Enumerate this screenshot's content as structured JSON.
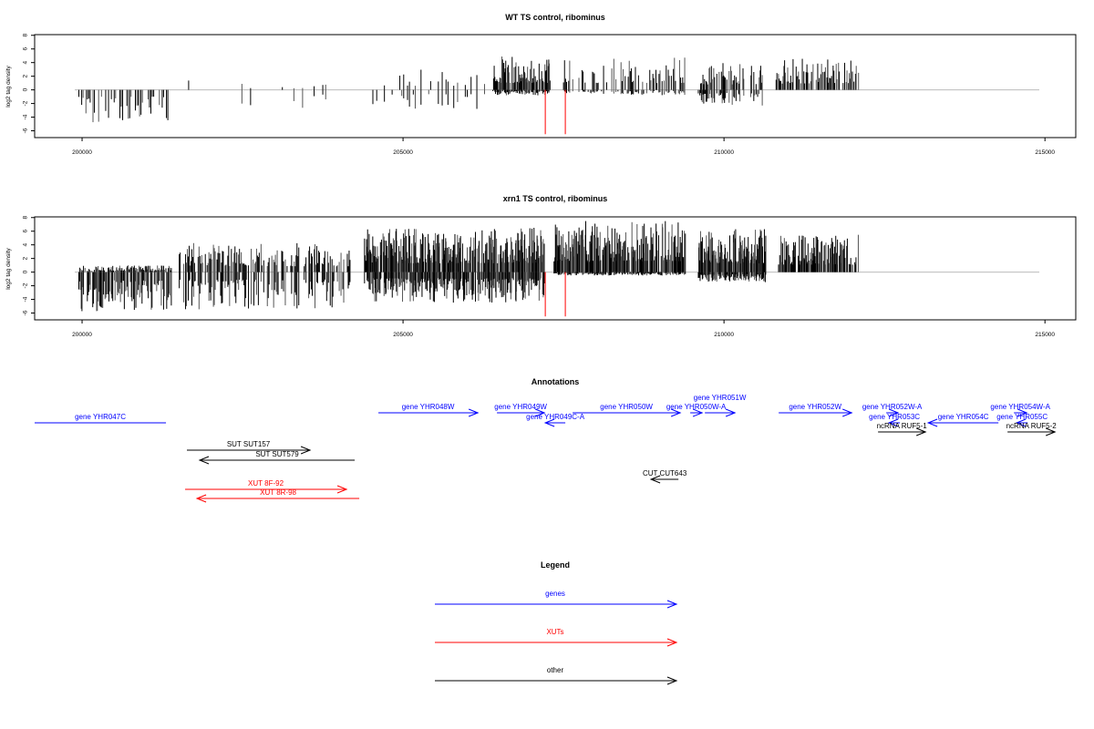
{
  "colors": {
    "genes": "#0000ff",
    "XUTs": "#ff0000",
    "other": "#000000",
    "bar": "#000000",
    "bar_alt": "#555555",
    "highlight": "#ff0000",
    "baseline": "#bbbbbb"
  },
  "chart_data": [
    {
      "type": "bar",
      "title": "WT TS control, ribominus",
      "ylabel": "log2 tag density",
      "xlim": [
        199261,
        215480
      ],
      "ylim": [
        -7,
        8.1
      ],
      "xticks": [
        200000,
        205000,
        210000,
        215000
      ],
      "xtick_labels": [
        "200000",
        "205000",
        "210000",
        "215000"
      ],
      "yticks": [
        8,
        6,
        4,
        2,
        0,
        -2,
        -4,
        -6
      ],
      "ytick_labels": [
        "8",
        "6",
        "4",
        "2",
        "0",
        "-2",
        "-4",
        "-6"
      ],
      "seed": 11,
      "regions": [
        {
          "start": 199950,
          "end": 201350,
          "step": 22,
          "pos_max": 0,
          "neg_max": 5,
          "fill": 0.8
        },
        {
          "start": 201600,
          "end": 201800,
          "step": 60,
          "pos_max": 2.3,
          "neg_max": 0,
          "fill": 0.5
        },
        {
          "start": 202400,
          "end": 204000,
          "step": 45,
          "pos_max": 1.2,
          "neg_max": 3,
          "fill": 0.35
        },
        {
          "start": 204500,
          "end": 206300,
          "step": 30,
          "pos_max": 3,
          "neg_max": 3,
          "fill": 0.45
        },
        {
          "start": 206400,
          "end": 207300,
          "step": 10,
          "pos_max": 5,
          "neg_max": 0.8,
          "fill": 0.85
        },
        {
          "start": 207500,
          "end": 209400,
          "step": 16,
          "pos_max": 5,
          "neg_max": 0.8,
          "fill": 0.55
        },
        {
          "start": 209600,
          "end": 210600,
          "step": 12,
          "pos_max": 4,
          "neg_max": 2.3,
          "fill": 0.75
        },
        {
          "start": 210800,
          "end": 212100,
          "step": 12,
          "pos_max": 4.6,
          "neg_max": 0,
          "fill": 0.75
        }
      ],
      "highlights": [
        {
          "x": 207216,
          "y": -6.5
        },
        {
          "x": 207528,
          "y": -6.5
        }
      ]
    },
    {
      "type": "bar",
      "title": "xrn1 TS control, ribominus",
      "ylabel": "log2 tag density",
      "xlim": [
        199261,
        215480
      ],
      "ylim": [
        -7,
        8.1
      ],
      "xticks": [
        200000,
        205000,
        210000,
        215000
      ],
      "xtick_labels": [
        "200000",
        "205000",
        "210000",
        "215000"
      ],
      "yticks": [
        8,
        6,
        4,
        2,
        0,
        -2,
        -4,
        -6
      ],
      "ytick_labels": [
        "8",
        "6",
        "4",
        "2",
        "0",
        "-2",
        "-4",
        "-6"
      ],
      "seed": 29,
      "regions": [
        {
          "start": 199950,
          "end": 201400,
          "step": 12,
          "pos_max": 1,
          "neg_max": 6,
          "fill": 0.95
        },
        {
          "start": 201500,
          "end": 204200,
          "step": 14,
          "pos_max": 4.3,
          "neg_max": 5.5,
          "fill": 0.75
        },
        {
          "start": 204400,
          "end": 207200,
          "step": 8,
          "pos_max": 6.5,
          "neg_max": 4.5,
          "fill": 0.95
        },
        {
          "start": 207350,
          "end": 209400,
          "step": 8,
          "pos_max": 7.5,
          "neg_max": 0.5,
          "fill": 0.95
        },
        {
          "start": 209600,
          "end": 210650,
          "step": 7,
          "pos_max": 6.3,
          "neg_max": 1.5,
          "fill": 0.95
        },
        {
          "start": 210850,
          "end": 212100,
          "step": 9,
          "pos_max": 5.5,
          "neg_max": 0,
          "fill": 0.85
        }
      ],
      "highlights": [
        {
          "x": 207216,
          "y": -6.5
        },
        {
          "x": 207528,
          "y": -6.5
        }
      ]
    }
  ],
  "annotations": {
    "title": "Annotations",
    "features": [
      {
        "label": "gene YHR047C",
        "type": "genes",
        "start": 199261,
        "end": 201307,
        "strand": ".",
        "lane": 1
      },
      {
        "label": "gene YHR048W",
        "type": "genes",
        "start": 204616,
        "end": 206165,
        "strand": "+",
        "lane": 0
      },
      {
        "label": "gene YHR049W",
        "type": "genes",
        "start": 206463,
        "end": 207202,
        "strand": "+",
        "lane": 0
      },
      {
        "label": "gene YHR049C-A",
        "type": "genes",
        "start": 207216,
        "end": 207528,
        "strand": "-",
        "lane": 1
      },
      {
        "label": "gene YHR050W",
        "type": "genes",
        "start": 207642,
        "end": 209318,
        "strand": "+",
        "lane": 0
      },
      {
        "label": "gene YHR050W-A",
        "type": "genes",
        "start": 209474,
        "end": 209659,
        "strand": "+",
        "lane": 0
      },
      {
        "label": "gene YHR051W",
        "type": "genes",
        "start": 209702,
        "end": 210170,
        "strand": "+",
        "lane": 0
      },
      {
        "label": "gene YHR052W",
        "type": "genes",
        "start": 210852,
        "end": 211989,
        "strand": "+",
        "lane": 0
      },
      {
        "label": "gene YHR052W-A",
        "type": "genes",
        "start": 212528,
        "end": 212712,
        "strand": "+",
        "lane": 0
      },
      {
        "label": "gene YHR053C",
        "type": "genes",
        "start": 212570,
        "end": 212741,
        "strand": "-",
        "lane": 1
      },
      {
        "label": "gene YHR054C",
        "type": "genes",
        "start": 213181,
        "end": 214275,
        "strand": "-",
        "lane": 1
      },
      {
        "label": "gene YHR054W-A",
        "type": "genes",
        "start": 214517,
        "end": 214716,
        "strand": "+",
        "lane": 0
      },
      {
        "label": "gene YHR055C",
        "type": "genes",
        "start": 214559,
        "end": 214730,
        "strand": "-",
        "lane": 1
      },
      {
        "label": "ncRNA RUF5-1",
        "type": "other",
        "start": 212400,
        "end": 213139,
        "strand": "+",
        "lane": 2
      },
      {
        "label": "ncRNA RUF5-2",
        "type": "other",
        "start": 214417,
        "end": 215156,
        "strand": "+",
        "lane": 2
      },
      {
        "label": "SUT SUT157",
        "type": "other",
        "start": 201633,
        "end": 203551,
        "strand": "+",
        "lane": 3
      },
      {
        "label": "SUT SUT579",
        "type": "other",
        "start": 201832,
        "end": 204247,
        "strand": "-",
        "lane": 4
      },
      {
        "label": "CUT CUT643",
        "type": "other",
        "start": 208863,
        "end": 209290,
        "strand": "-",
        "lane": 5
      },
      {
        "label": "XUT 8F-92",
        "type": "XUTs",
        "start": 201605,
        "end": 204119,
        "strand": "+",
        "lane": 6
      },
      {
        "label": "XUT 8R-98",
        "type": "XUTs",
        "start": 201790,
        "end": 204318,
        "strand": "-",
        "lane": 7
      }
    ]
  },
  "legend": {
    "title": "Legend",
    "items": [
      {
        "label": "genes",
        "type": "genes"
      },
      {
        "label": "XUTs",
        "type": "XUTs"
      },
      {
        "label": "other",
        "type": "other"
      }
    ]
  }
}
